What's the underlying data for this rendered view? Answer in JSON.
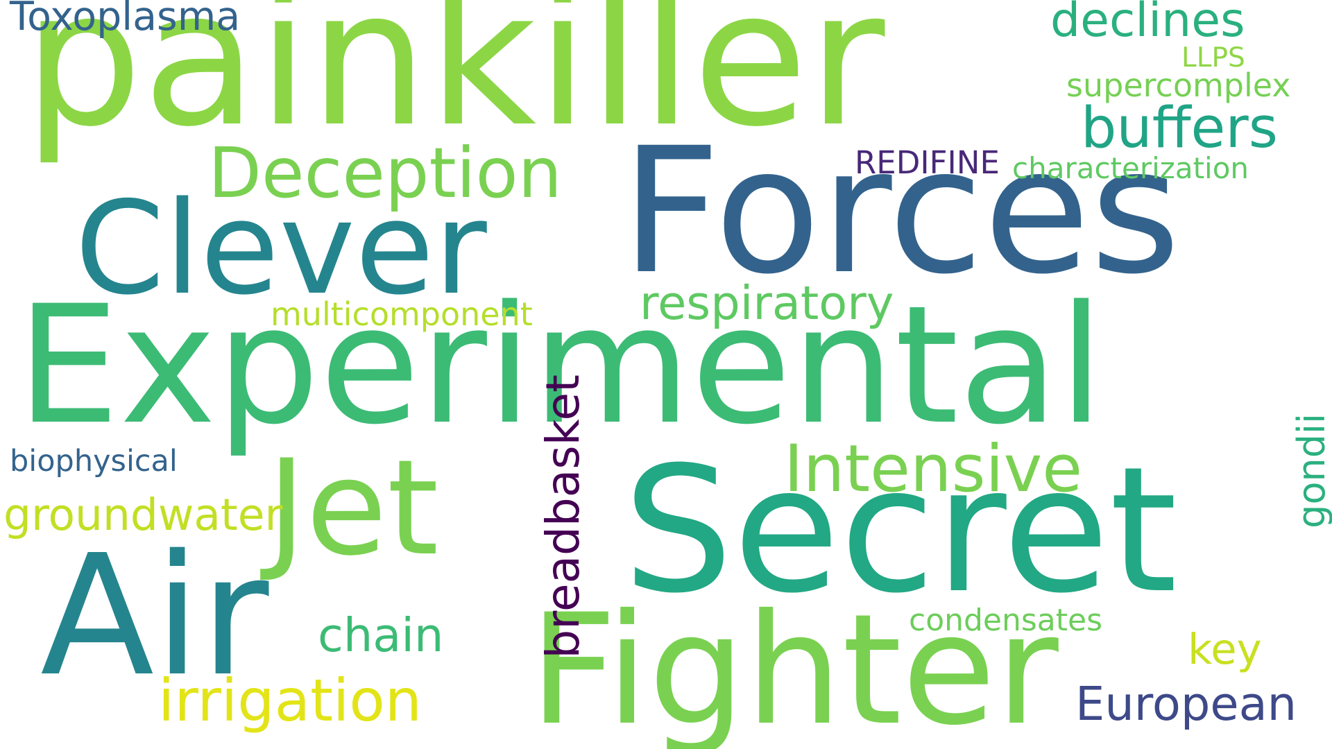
{
  "words": [
    {
      "text": "painkiller",
      "color": "#8cd645"
    },
    {
      "text": "Experimental",
      "color": "#3cbb75"
    },
    {
      "text": "Forces",
      "color": "#33638d"
    },
    {
      "text": "Secret",
      "color": "#22a884"
    },
    {
      "text": "Clever",
      "color": "#25858e"
    },
    {
      "text": "Air",
      "color": "#25858e"
    },
    {
      "text": "Fighter",
      "color": "#7ad151"
    },
    {
      "text": "Jet",
      "color": "#7ad151"
    },
    {
      "text": "Deception",
      "color": "#7ad151"
    },
    {
      "text": "Intensive",
      "color": "#7ad151"
    },
    {
      "text": "buffers",
      "color": "#20a486"
    },
    {
      "text": "declines",
      "color": "#2ab07f"
    },
    {
      "text": "respiratory",
      "color": "#5ec962"
    },
    {
      "text": "irrigation",
      "color": "#e2e418"
    },
    {
      "text": "groundwater",
      "color": "#c2df23"
    },
    {
      "text": "breadbasket",
      "color": "#440154"
    },
    {
      "text": "European",
      "color": "#3e4989"
    },
    {
      "text": "chain",
      "color": "#3cbb75"
    },
    {
      "text": "key",
      "color": "#c8e020"
    },
    {
      "text": "Toxoplasma",
      "color": "#33638d"
    },
    {
      "text": "supercomplex",
      "color": "#75d054"
    },
    {
      "text": "characterization",
      "color": "#5ec962"
    },
    {
      "text": "REDIFINE",
      "color": "#482878"
    },
    {
      "text": "gondii",
      "color": "#2ab07f"
    },
    {
      "text": "multicomponent",
      "color": "#b5de2b"
    },
    {
      "text": "condensates",
      "color": "#6ccd5a"
    },
    {
      "text": "biophysical",
      "color": "#33638d"
    },
    {
      "text": "LLPS",
      "color": "#8ed645"
    }
  ]
}
